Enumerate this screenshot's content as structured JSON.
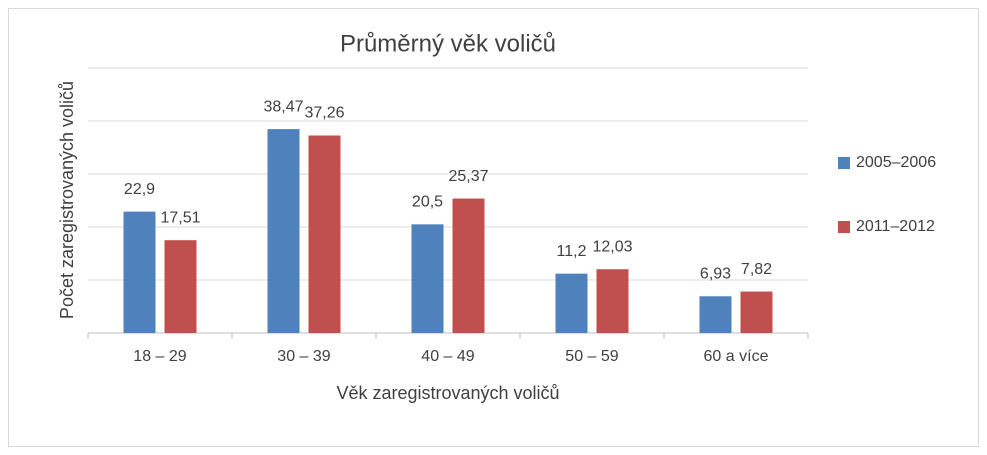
{
  "chart_data": {
    "type": "bar",
    "title": "Průměrný věk voličů",
    "x_label": "Věk zaregistrovaných voličů",
    "y_label": "Počet zaregistrovaných voličů",
    "categories": [
      "18 – 29",
      "30 – 39",
      "40 – 49",
      "50 – 59",
      "60 a více"
    ],
    "series": [
      {
        "name": "2005–2006",
        "color": "#4f81bd",
        "values": [
          22.9,
          38.47,
          20.5,
          11.2,
          6.93
        ],
        "value_labels": [
          "22,9",
          "38,47",
          "20,5",
          "11,2",
          "6,93"
        ]
      },
      {
        "name": "2011–2012",
        "color": "#c0504d",
        "values": [
          17.51,
          37.26,
          25.37,
          12.03,
          7.82
        ],
        "value_labels": [
          "17,51",
          "37,26",
          "25,37",
          "12,03",
          "7,82"
        ]
      }
    ],
    "ylim": [
      0,
      50
    ],
    "yticks": [
      0,
      10,
      20,
      30,
      40,
      50
    ],
    "grid": true,
    "legend": "right"
  }
}
